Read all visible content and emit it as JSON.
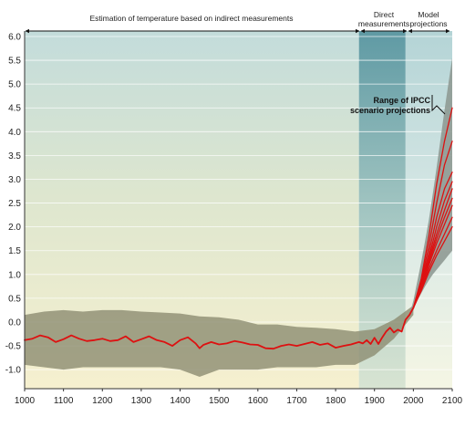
{
  "chart_data": {
    "type": "line",
    "title": "",
    "xlabel": "",
    "ylabel": "",
    "xlim": [
      1000,
      2100
    ],
    "ylim": [
      -1.4,
      6.0
    ],
    "grid": true,
    "x_ticks": [
      "1000",
      "1100",
      "1200",
      "1300",
      "1400",
      "1500",
      "1600",
      "1700",
      "1800",
      "1900",
      "2000",
      "2100"
    ],
    "y_ticks": [
      "-1.0",
      "-0.5",
      "0.0",
      "0.5",
      "1.0",
      "1.5",
      "2.0",
      "2.5",
      "3.0",
      "3.5",
      "4.0",
      "4.5",
      "5.0",
      "5.5",
      "6.0"
    ],
    "periods": [
      {
        "label": "Estimation of temperature based on indirect measurements",
        "start": 1000,
        "end": 1860
      },
      {
        "label_lines": [
          "Direct",
          "measurements"
        ],
        "start": 1860,
        "end": 1980
      },
      {
        "label_lines": [
          "Model",
          "projections"
        ],
        "start": 1980,
        "end": 2100
      }
    ],
    "annotation_lines": [
      "Range of IPCC",
      "scenario projections"
    ],
    "colors": {
      "reconstruction": "#dd1111",
      "uncertainty_band": "#8c8c70",
      "projection_envelope": "#8f9a94",
      "projection_lines": "#dd1111"
    },
    "series": [
      {
        "kind": "reconstruction",
        "x": [
          1000,
          1020,
          1040,
          1060,
          1080,
          1100,
          1120,
          1140,
          1160,
          1180,
          1200,
          1220,
          1240,
          1260,
          1280,
          1300,
          1320,
          1340,
          1360,
          1380,
          1400,
          1420,
          1440,
          1450,
          1460,
          1480,
          1500,
          1520,
          1540,
          1560,
          1580,
          1600,
          1620,
          1640,
          1660,
          1680,
          1700,
          1720,
          1740,
          1760,
          1780,
          1800,
          1820,
          1840,
          1860,
          1870,
          1880,
          1890,
          1900,
          1910,
          1920,
          1930,
          1940,
          1950,
          1960,
          1970,
          1980,
          1990,
          2000
        ],
        "y": [
          -0.38,
          -0.35,
          -0.28,
          -0.32,
          -0.42,
          -0.36,
          -0.28,
          -0.35,
          -0.4,
          -0.38,
          -0.35,
          -0.4,
          -0.38,
          -0.3,
          -0.42,
          -0.36,
          -0.3,
          -0.38,
          -0.42,
          -0.5,
          -0.38,
          -0.32,
          -0.45,
          -0.55,
          -0.48,
          -0.42,
          -0.47,
          -0.45,
          -0.4,
          -0.43,
          -0.47,
          -0.48,
          -0.55,
          -0.56,
          -0.5,
          -0.47,
          -0.5,
          -0.46,
          -0.42,
          -0.48,
          -0.45,
          -0.54,
          -0.5,
          -0.47,
          -0.42,
          -0.45,
          -0.38,
          -0.46,
          -0.33,
          -0.46,
          -0.32,
          -0.2,
          -0.12,
          -0.22,
          -0.16,
          -0.2,
          0.05,
          0.15,
          0.3
        ]
      },
      {
        "kind": "uncertainty",
        "x": [
          1000,
          1050,
          1100,
          1150,
          1200,
          1250,
          1300,
          1350,
          1400,
          1450,
          1500,
          1550,
          1600,
          1650,
          1700,
          1750,
          1800,
          1850,
          1900,
          1950,
          2000
        ],
        "y_high": [
          0.15,
          0.22,
          0.25,
          0.22,
          0.25,
          0.25,
          0.22,
          0.2,
          0.18,
          0.12,
          0.1,
          0.05,
          -0.05,
          -0.05,
          -0.1,
          -0.12,
          -0.15,
          -0.2,
          -0.15,
          0.05,
          0.35
        ],
        "y_low": [
          -0.9,
          -0.95,
          -1.0,
          -0.95,
          -0.95,
          -0.95,
          -0.95,
          -0.95,
          -1.0,
          -1.15,
          -1.0,
          -1.0,
          -1.0,
          -0.95,
          -0.95,
          -0.95,
          -0.9,
          -0.9,
          -0.7,
          -0.35,
          0.15
        ]
      },
      {
        "kind": "projection_envelope",
        "x": [
          1990,
          2000,
          2010,
          2020,
          2030,
          2040,
          2050,
          2060,
          2070,
          2080,
          2090,
          2100
        ],
        "y_high": [
          0.15,
          0.45,
          0.85,
          1.25,
          1.7,
          2.15,
          2.7,
          3.25,
          3.85,
          4.45,
          5.0,
          5.55
        ],
        "y_low": [
          0.1,
          0.25,
          0.45,
          0.6,
          0.75,
          0.88,
          1.0,
          1.1,
          1.2,
          1.3,
          1.4,
          1.5
        ]
      },
      {
        "kind": "projection",
        "x": [
          2000,
          2020,
          2040,
          2060,
          2080,
          2100
        ],
        "y": [
          0.3,
          0.9,
          1.8,
          2.9,
          3.8,
          4.5
        ]
      },
      {
        "kind": "projection",
        "x": [
          2000,
          2020,
          2040,
          2060,
          2080,
          2100
        ],
        "y": [
          0.3,
          0.85,
          1.6,
          2.5,
          3.3,
          3.8
        ]
      },
      {
        "kind": "projection",
        "x": [
          2000,
          2020,
          2040,
          2060,
          2080,
          2100
        ],
        "y": [
          0.3,
          0.8,
          1.45,
          2.2,
          2.8,
          3.15
        ]
      },
      {
        "kind": "projection",
        "x": [
          2000,
          2020,
          2040,
          2060,
          2080,
          2100
        ],
        "y": [
          0.3,
          0.78,
          1.35,
          2.0,
          2.55,
          2.95
        ]
      },
      {
        "kind": "projection",
        "x": [
          2000,
          2020,
          2040,
          2060,
          2080,
          2100
        ],
        "y": [
          0.3,
          0.75,
          1.3,
          1.85,
          2.35,
          2.8
        ]
      },
      {
        "kind": "projection",
        "x": [
          2000,
          2020,
          2040,
          2060,
          2080,
          2100
        ],
        "y": [
          0.3,
          0.72,
          1.25,
          1.75,
          2.2,
          2.6
        ]
      },
      {
        "kind": "projection",
        "x": [
          2000,
          2020,
          2040,
          2060,
          2080,
          2100
        ],
        "y": [
          0.3,
          0.7,
          1.2,
          1.65,
          2.05,
          2.45
        ]
      },
      {
        "kind": "projection",
        "x": [
          2000,
          2020,
          2040,
          2060,
          2080,
          2100
        ],
        "y": [
          0.3,
          0.68,
          1.12,
          1.5,
          1.85,
          2.2
        ]
      },
      {
        "kind": "projection",
        "x": [
          2000,
          2020,
          2040,
          2060,
          2080,
          2100
        ],
        "y": [
          0.3,
          0.65,
          1.05,
          1.4,
          1.7,
          2.0
        ]
      }
    ]
  }
}
